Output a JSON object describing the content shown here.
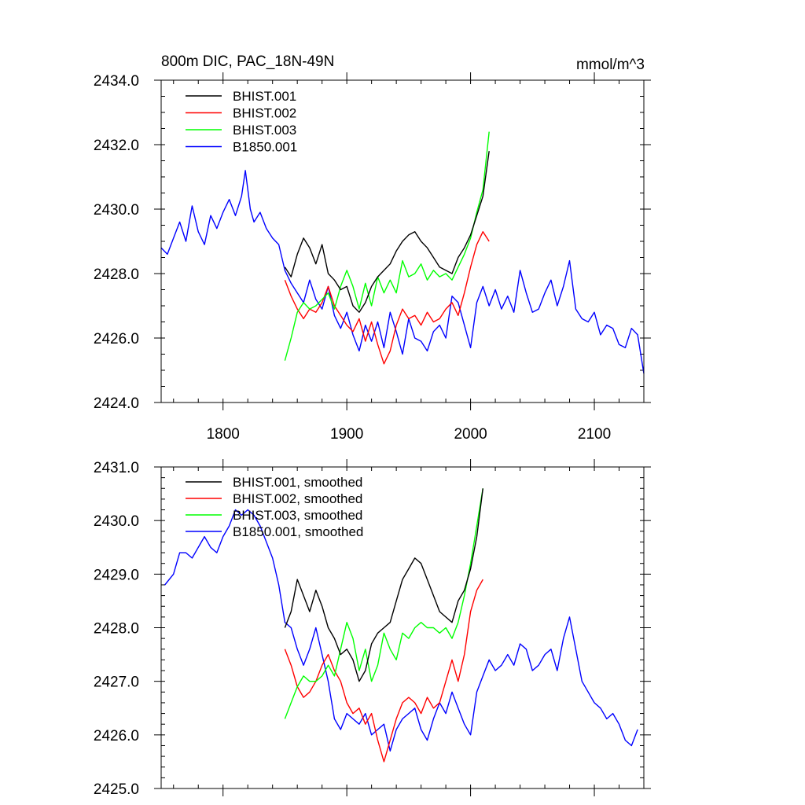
{
  "colors": {
    "BHIST.001": "#000000",
    "BHIST.002": "#ff0000",
    "BHIST.003": "#00ff00",
    "B1850.001": "#0000ff"
  },
  "chart_data": [
    {
      "type": "line",
      "title": "800m DIC, PAC_18N-49N",
      "units": "mmol/m^3",
      "xlim": [
        1750,
        2140
      ],
      "ylim": [
        2424.0,
        2434.0
      ],
      "x_ticks": [
        1800,
        1900,
        2000,
        2100
      ],
      "x_tick_labels": [
        "1800",
        "1900",
        "2000",
        "2100"
      ],
      "y_ticks": [
        2424.0,
        2426.0,
        2428.0,
        2430.0,
        2432.0,
        2434.0
      ],
      "y_tick_labels": [
        "2424.0",
        "2426.0",
        "2428.0",
        "2430.0",
        "2432.0",
        "2434.0"
      ],
      "legend": [
        "BHIST.001",
        "BHIST.002",
        "BHIST.003",
        "B1850.001"
      ],
      "series": [
        {
          "name": "B1850.001",
          "x": [
            1750,
            1755,
            1760,
            1765,
            1770,
            1775,
            1780,
            1785,
            1790,
            1795,
            1800,
            1805,
            1810,
            1815,
            1818,
            1822,
            1825,
            1830,
            1835,
            1840,
            1845,
            1850,
            1855,
            1860,
            1865,
            1870,
            1875,
            1880,
            1885,
            1890,
            1895,
            1900,
            1905,
            1910,
            1915,
            1920,
            1925,
            1930,
            1935,
            1940,
            1945,
            1950,
            1955,
            1960,
            1965,
            1970,
            1975,
            1980,
            1985,
            1990,
            1995,
            2000,
            2005,
            2010,
            2015,
            2020,
            2025,
            2030,
            2035,
            2040,
            2045,
            2050,
            2055,
            2060,
            2065,
            2070,
            2075,
            2080,
            2085,
            2090,
            2095,
            2100,
            2105,
            2110,
            2115,
            2120,
            2125,
            2130,
            2135,
            2140
          ],
          "y": [
            2428.8,
            2428.6,
            2429.1,
            2429.6,
            2429.0,
            2430.1,
            2429.3,
            2428.9,
            2429.8,
            2429.4,
            2429.9,
            2430.3,
            2429.8,
            2430.4,
            2431.2,
            2430.0,
            2429.6,
            2429.9,
            2429.4,
            2429.1,
            2428.9,
            2428.1,
            2427.7,
            2427.4,
            2427.1,
            2427.8,
            2427.2,
            2426.9,
            2427.6,
            2426.7,
            2426.3,
            2426.8,
            2426.1,
            2425.6,
            2426.4,
            2425.9,
            2426.5,
            2425.7,
            2426.8,
            2426.2,
            2425.5,
            2426.6,
            2426.0,
            2425.9,
            2425.6,
            2426.2,
            2426.4,
            2426.0,
            2427.3,
            2427.1,
            2426.4,
            2425.7,
            2427.1,
            2427.6,
            2427.0,
            2427.5,
            2426.9,
            2427.3,
            2426.8,
            2428.1,
            2427.4,
            2426.8,
            2426.9,
            2427.4,
            2427.8,
            2427.0,
            2427.6,
            2428.4,
            2426.9,
            2426.6,
            2426.5,
            2426.8,
            2426.1,
            2426.4,
            2426.3,
            2425.8,
            2425.7,
            2426.3,
            2426.1,
            2424.9
          ]
        },
        {
          "name": "BHIST.002",
          "x": [
            1850,
            1855,
            1860,
            1865,
            1870,
            1875,
            1880,
            1885,
            1890,
            1895,
            1900,
            1905,
            1910,
            1915,
            1920,
            1925,
            1930,
            1935,
            1940,
            1945,
            1950,
            1955,
            1960,
            1965,
            1970,
            1975,
            1980,
            1985,
            1990,
            1995,
            2000,
            2005,
            2010,
            2015
          ],
          "y": [
            2427.8,
            2427.3,
            2426.9,
            2426.6,
            2426.9,
            2426.8,
            2427.1,
            2427.6,
            2427.0,
            2426.7,
            2426.4,
            2426.2,
            2426.6,
            2425.9,
            2426.5,
            2425.8,
            2425.2,
            2425.6,
            2426.4,
            2426.9,
            2426.6,
            2426.7,
            2426.4,
            2426.8,
            2426.5,
            2426.6,
            2426.9,
            2427.1,
            2426.7,
            2427.4,
            2428.2,
            2428.9,
            2429.3,
            2429.0
          ]
        },
        {
          "name": "BHIST.003",
          "x": [
            1850,
            1855,
            1860,
            1865,
            1870,
            1875,
            1880,
            1885,
            1890,
            1895,
            1900,
            1905,
            1910,
            1915,
            1920,
            1925,
            1930,
            1935,
            1940,
            1945,
            1950,
            1955,
            1960,
            1965,
            1970,
            1975,
            1980,
            1985,
            1990,
            1995,
            2000,
            2005,
            2010,
            2015
          ],
          "y": [
            2425.3,
            2426.0,
            2426.8,
            2427.1,
            2426.9,
            2427.0,
            2427.2,
            2427.4,
            2426.9,
            2427.6,
            2428.1,
            2427.6,
            2426.9,
            2427.7,
            2427.0,
            2427.9,
            2427.4,
            2427.8,
            2427.4,
            2428.4,
            2427.9,
            2428.0,
            2428.3,
            2427.8,
            2428.1,
            2427.9,
            2428.0,
            2427.8,
            2428.2,
            2428.6,
            2429.1,
            2429.9,
            2430.6,
            2432.4
          ]
        },
        {
          "name": "BHIST.001",
          "x": [
            1850,
            1855,
            1860,
            1865,
            1870,
            1875,
            1880,
            1885,
            1890,
            1895,
            1900,
            1905,
            1910,
            1915,
            1920,
            1925,
            1930,
            1935,
            1940,
            1945,
            1950,
            1955,
            1960,
            1965,
            1970,
            1975,
            1980,
            1985,
            1990,
            1995,
            2000,
            2005,
            2010,
            2015
          ],
          "y": [
            2428.2,
            2427.9,
            2428.6,
            2429.1,
            2428.8,
            2428.3,
            2428.9,
            2428.0,
            2427.8,
            2427.5,
            2427.6,
            2427.0,
            2426.8,
            2427.1,
            2427.6,
            2427.9,
            2428.1,
            2428.3,
            2428.7,
            2429.0,
            2429.2,
            2429.3,
            2429.0,
            2428.8,
            2428.5,
            2428.2,
            2428.1,
            2428.0,
            2428.5,
            2428.8,
            2429.2,
            2429.8,
            2430.4,
            2431.8
          ]
        }
      ]
    },
    {
      "type": "line",
      "xlim": [
        1750,
        2140
      ],
      "ylim": [
        2425.0,
        2431.0
      ],
      "x_ticks": [
        1800,
        1900,
        2000,
        2100
      ],
      "y_ticks": [
        2425.0,
        2426.0,
        2427.0,
        2428.0,
        2429.0,
        2430.0,
        2431.0
      ],
      "y_tick_labels": [
        "2425.0",
        "2426.0",
        "2427.0",
        "2428.0",
        "2429.0",
        "2430.0",
        "2431.0"
      ],
      "legend": [
        "BHIST.001, smoothed",
        "BHIST.002, smoothed",
        "BHIST.003, smoothed",
        "B1850.001, smoothed"
      ],
      "series": [
        {
          "name": "B1850.001, smoothed",
          "x": [
            1753,
            1760,
            1765,
            1770,
            1775,
            1780,
            1785,
            1790,
            1795,
            1800,
            1805,
            1810,
            1815,
            1820,
            1825,
            1830,
            1835,
            1840,
            1845,
            1850,
            1855,
            1860,
            1865,
            1870,
            1875,
            1880,
            1885,
            1890,
            1895,
            1900,
            1905,
            1910,
            1915,
            1920,
            1925,
            1930,
            1935,
            1940,
            1945,
            1950,
            1955,
            1960,
            1965,
            1970,
            1975,
            1980,
            1985,
            1990,
            1995,
            2000,
            2005,
            2010,
            2015,
            2020,
            2025,
            2030,
            2035,
            2040,
            2045,
            2050,
            2055,
            2060,
            2065,
            2070,
            2075,
            2080,
            2085,
            2090,
            2095,
            2100,
            2105,
            2110,
            2115,
            2120,
            2125,
            2130,
            2135
          ],
          "y": [
            2428.8,
            2429.0,
            2429.4,
            2429.4,
            2429.3,
            2429.5,
            2429.7,
            2429.5,
            2429.4,
            2429.7,
            2429.9,
            2430.2,
            2430.1,
            2430.2,
            2430.1,
            2429.9,
            2429.6,
            2429.3,
            2428.8,
            2428.1,
            2428.0,
            2427.6,
            2427.3,
            2427.6,
            2428.0,
            2427.5,
            2427.0,
            2426.3,
            2426.1,
            2426.4,
            2426.3,
            2426.2,
            2426.4,
            2426.0,
            2426.1,
            2426.2,
            2425.7,
            2426.1,
            2426.3,
            2426.4,
            2426.5,
            2426.1,
            2425.9,
            2426.3,
            2426.6,
            2426.4,
            2426.8,
            2426.5,
            2426.2,
            2426.0,
            2426.8,
            2427.1,
            2427.4,
            2427.2,
            2427.3,
            2427.5,
            2427.3,
            2427.7,
            2427.6,
            2427.2,
            2427.3,
            2427.5,
            2427.6,
            2427.2,
            2427.8,
            2428.2,
            2427.6,
            2427.0,
            2426.8,
            2426.6,
            2426.5,
            2426.3,
            2426.4,
            2426.2,
            2425.9,
            2425.8,
            2426.1
          ]
        },
        {
          "name": "BHIST.002, smoothed",
          "x": [
            1850,
            1855,
            1860,
            1865,
            1870,
            1875,
            1880,
            1885,
            1890,
            1895,
            1900,
            1905,
            1910,
            1915,
            1920,
            1925,
            1930,
            1935,
            1940,
            1945,
            1950,
            1955,
            1960,
            1965,
            1970,
            1975,
            1980,
            1985,
            1990,
            1995,
            2000,
            2005,
            2010
          ],
          "y": [
            2427.6,
            2427.3,
            2426.9,
            2426.7,
            2426.8,
            2427.0,
            2427.3,
            2427.5,
            2427.2,
            2427.0,
            2426.6,
            2426.4,
            2426.5,
            2426.2,
            2426.4,
            2425.9,
            2425.5,
            2425.9,
            2426.3,
            2426.6,
            2426.7,
            2426.6,
            2426.4,
            2426.7,
            2426.5,
            2426.6,
            2427.0,
            2427.4,
            2427.0,
            2427.5,
            2428.3,
            2428.7,
            2428.9
          ]
        },
        {
          "name": "BHIST.003, smoothed",
          "x": [
            1850,
            1855,
            1860,
            1865,
            1870,
            1875,
            1880,
            1885,
            1890,
            1895,
            1900,
            1905,
            1910,
            1915,
            1920,
            1925,
            1930,
            1935,
            1940,
            1945,
            1950,
            1955,
            1960,
            1965,
            1970,
            1975,
            1980,
            1985,
            1990,
            1995,
            2000,
            2005,
            2010
          ],
          "y": [
            2426.3,
            2426.6,
            2426.9,
            2427.1,
            2427.0,
            2427.0,
            2427.1,
            2427.3,
            2427.1,
            2427.6,
            2428.1,
            2427.8,
            2427.2,
            2427.6,
            2427.0,
            2427.3,
            2427.9,
            2427.6,
            2427.4,
            2427.9,
            2427.8,
            2428.0,
            2428.1,
            2428.0,
            2428.0,
            2427.9,
            2428.0,
            2427.8,
            2428.1,
            2428.6,
            2429.2,
            2429.9,
            2430.6
          ]
        },
        {
          "name": "BHIST.001, smoothed",
          "x": [
            1850,
            1855,
            1860,
            1865,
            1870,
            1875,
            1880,
            1885,
            1890,
            1895,
            1900,
            1905,
            1910,
            1915,
            1920,
            1925,
            1930,
            1935,
            1940,
            1945,
            1950,
            1955,
            1960,
            1965,
            1970,
            1975,
            1980,
            1985,
            1990,
            1995,
            2000,
            2005,
            2010
          ],
          "y": [
            2428.0,
            2428.3,
            2428.9,
            2428.6,
            2428.3,
            2428.7,
            2428.4,
            2428.0,
            2427.8,
            2427.5,
            2427.6,
            2427.4,
            2427.0,
            2427.2,
            2427.7,
            2427.9,
            2428.0,
            2428.1,
            2428.5,
            2428.9,
            2429.1,
            2429.3,
            2429.2,
            2428.9,
            2428.6,
            2428.3,
            2428.2,
            2428.1,
            2428.5,
            2428.7,
            2429.1,
            2429.7,
            2430.6
          ]
        }
      ]
    }
  ]
}
